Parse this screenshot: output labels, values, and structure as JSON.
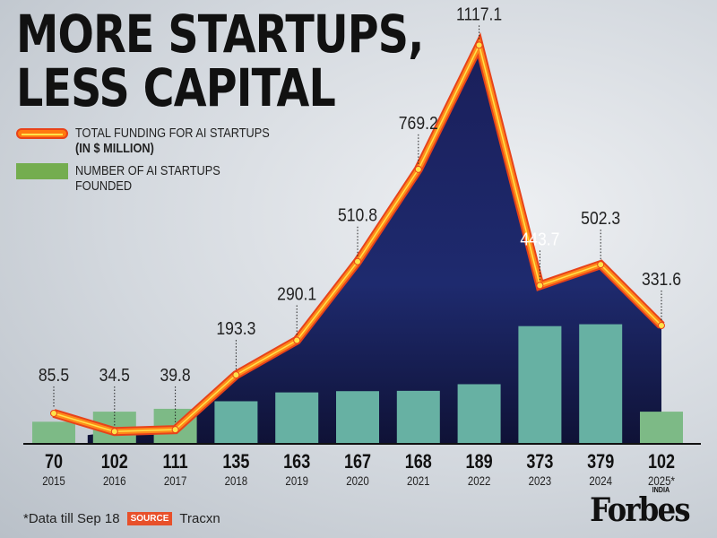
{
  "title_lines": [
    "MORE STARTUPS,",
    "LESS CAPITAL"
  ],
  "legend": {
    "line_label": "TOTAL FUNDING FOR AI STARTUPS",
    "line_unit": "(IN $ MILLION)",
    "bar_label_1": "NUMBER OF AI STARTUPS",
    "bar_label_2": "FOUNDED"
  },
  "chart_data": {
    "type": "bar+line",
    "categories": [
      "2015",
      "2016",
      "2017",
      "2018",
      "2019",
      "2020",
      "2021",
      "2022",
      "2023",
      "2024",
      "2025*"
    ],
    "series": [
      {
        "name": "NUMBER OF AI STARTUPS FOUNDED",
        "type": "bar",
        "values": [
          70,
          102,
          111,
          135,
          163,
          167,
          168,
          189,
          373,
          379,
          102
        ],
        "color": "#6aaf9e"
      },
      {
        "name": "TOTAL FUNDING FOR AI STARTUPS (IN $ MILLION)",
        "type": "line",
        "values": [
          85.5,
          34.5,
          39.8,
          193.3,
          290.1,
          510.8,
          769.2,
          1117.1,
          443.7,
          502.3,
          331.6
        ],
        "color": "#ff6a13"
      }
    ],
    "labels_bar": [
      "70",
      "102",
      "111",
      "135",
      "163",
      "167",
      "168",
      "189",
      "373",
      "379",
      "102"
    ],
    "labels_line": [
      "85.5",
      "34.5",
      "39.8",
      "193.3",
      "290.1",
      "510.8",
      "769.2",
      "1117.1",
      "443.7",
      "502.3",
      "331.6"
    ],
    "grid": false
  },
  "footer": {
    "note": "*Data till Sep 18",
    "source_tag": "SOURCE",
    "source": "Tracxn"
  },
  "logo": {
    "name": "Forbes",
    "edition": "INDIA"
  }
}
